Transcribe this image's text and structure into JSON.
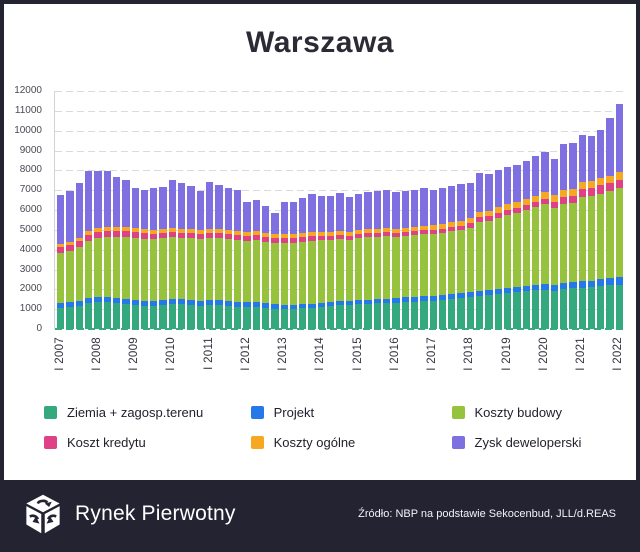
{
  "title": "Warszawa",
  "chart_data": {
    "type": "bar",
    "stacked": true,
    "title": "Warszawa",
    "xlabel": "",
    "ylabel": "",
    "ylim": [
      0,
      12000
    ],
    "y_tick_step": 1000,
    "y_ticks": [
      0,
      1000,
      2000,
      3000,
      4000,
      5000,
      6000,
      7000,
      8000,
      9000,
      10000,
      11000,
      12000
    ],
    "grid": "horizontal-dashed",
    "legend_position": "bottom",
    "n_bars": 61,
    "x_label_every": 4,
    "x_tick_labels": [
      "I 2007",
      "I 2008",
      "I 2009",
      "I 2010",
      "I 2011",
      "I 2012",
      "I 2013",
      "I 2014",
      "I 2015",
      "I 2016",
      "I 2017",
      "I 2018",
      "I 2019",
      "I 2020",
      "I 2021",
      "I 2022"
    ],
    "zero_line_color": "#3aab80",
    "series": [
      {
        "name": "Ziemia + zagosp.terenu",
        "color": "#35a97e",
        "values": [
          1050,
          1100,
          1150,
          1300,
          1350,
          1350,
          1300,
          1250,
          1200,
          1150,
          1150,
          1200,
          1250,
          1250,
          1200,
          1150,
          1200,
          1200,
          1150,
          1100,
          1100,
          1100,
          1050,
          1000,
          1000,
          1000,
          1050,
          1050,
          1100,
          1150,
          1200,
          1200,
          1250,
          1250,
          1300,
          1300,
          1300,
          1350,
          1350,
          1400,
          1400,
          1450,
          1500,
          1550,
          1600,
          1650,
          1700,
          1750,
          1800,
          1850,
          1900,
          1950,
          1950,
          1900,
          2000,
          2050,
          2050,
          2100,
          2150,
          2200,
          2200
        ]
      },
      {
        "name": "Projekt",
        "color": "#2478e8",
        "values": [
          250,
          250,
          260,
          260,
          260,
          260,
          260,
          250,
          250,
          250,
          250,
          250,
          250,
          250,
          250,
          250,
          250,
          250,
          250,
          250,
          240,
          240,
          240,
          240,
          230,
          230,
          230,
          230,
          230,
          230,
          230,
          230,
          230,
          230,
          230,
          230,
          240,
          240,
          240,
          240,
          250,
          250,
          250,
          250,
          260,
          260,
          270,
          270,
          280,
          280,
          290,
          290,
          300,
          300,
          320,
          330,
          350,
          350,
          380,
          400,
          420
        ]
      },
      {
        "name": "Koszty budowy",
        "color": "#97c23e",
        "values": [
          2550,
          2600,
          2740,
          2890,
          2990,
          3040,
          3090,
          3150,
          3150,
          3150,
          3150,
          3150,
          3150,
          3100,
          3150,
          3150,
          3150,
          3150,
          3150,
          3150,
          3110,
          3160,
          3110,
          3110,
          3120,
          3120,
          3120,
          3170,
          3170,
          3120,
          3120,
          3070,
          3120,
          3170,
          3120,
          3170,
          3110,
          3110,
          3160,
          3160,
          3150,
          3150,
          3200,
          3200,
          3240,
          3490,
          3480,
          3580,
          3670,
          3720,
          3810,
          3910,
          4050,
          3900,
          3980,
          3970,
          4250,
          4250,
          4270,
          4350,
          4480
        ]
      },
      {
        "name": "Koszt kredytu",
        "color": "#df4187",
        "values": [
          300,
          300,
          300,
          300,
          300,
          300,
          300,
          300,
          300,
          300,
          250,
          250,
          250,
          250,
          250,
          250,
          250,
          250,
          250,
          250,
          250,
          250,
          250,
          250,
          250,
          250,
          250,
          250,
          200,
          200,
          200,
          200,
          200,
          200,
          200,
          200,
          200,
          200,
          200,
          200,
          200,
          200,
          200,
          200,
          250,
          250,
          250,
          250,
          250,
          250,
          250,
          250,
          250,
          300,
          350,
          350,
          400,
          400,
          450,
          400,
          400
        ]
      },
      {
        "name": "Koszty ogólne",
        "color": "#f7a823",
        "values": [
          150,
          150,
          150,
          200,
          200,
          200,
          200,
          200,
          200,
          200,
          200,
          200,
          200,
          200,
          200,
          200,
          200,
          200,
          200,
          200,
          200,
          200,
          200,
          200,
          200,
          200,
          200,
          200,
          200,
          200,
          200,
          200,
          200,
          200,
          200,
          200,
          200,
          200,
          200,
          200,
          250,
          250,
          250,
          250,
          250,
          250,
          250,
          300,
          300,
          300,
          300,
          300,
          350,
          350,
          350,
          350,
          350,
          350,
          350,
          350,
          400
        ]
      },
      {
        "name": "Zysk deweloperski",
        "color": "#7f70e2",
        "values": [
          2450,
          2550,
          2750,
          3000,
          2850,
          2800,
          2500,
          2350,
          2000,
          1950,
          2100,
          2100,
          2400,
          2300,
          2150,
          1950,
          2350,
          2200,
          2100,
          2050,
          1500,
          1550,
          1350,
          1050,
          1600,
          1600,
          1750,
          1900,
          1800,
          1800,
          1900,
          1750,
          1800,
          1850,
          1900,
          1900,
          1850,
          1850,
          1850,
          1900,
          1750,
          1800,
          1800,
          1850,
          1750,
          1950,
          1850,
          1850,
          1850,
          1850,
          1900,
          2000,
          2000,
          1800,
          2350,
          2350,
          2400,
          2300,
          2450,
          2950,
          3470
        ]
      }
    ]
  },
  "footer": {
    "brand": "Rynek Pierwotny",
    "source": "Źródło: NBP na podstawie Sekocenbud, JLL/d.REAS"
  },
  "colors": {
    "frame": "#242332",
    "footer_bg": "#242332",
    "grid": "#d9d9de",
    "axis_text": "#4a4953"
  }
}
